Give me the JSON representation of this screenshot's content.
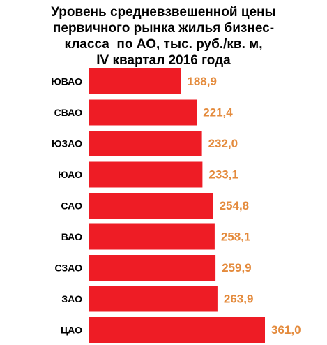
{
  "chart_data": {
    "type": "bar",
    "orientation": "horizontal",
    "title_lines": [
      "Уровень средневзвешенной цены",
      "первичного рынка жилья бизнес-",
      "класса  по АО, тыс. руб./кв. м,",
      "IV квартал 2016 года"
    ],
    "categories": [
      "ЮВАО",
      "СВАО",
      "ЮЗАО",
      "ЮАО",
      "САО",
      "ВАО",
      "СЗАО",
      "ЗАО",
      "ЦАО"
    ],
    "values": [
      188.9,
      221.4,
      232.0,
      233.1,
      254.8,
      258.1,
      259.9,
      263.9,
      361.0
    ],
    "value_labels": [
      "188,9",
      "221,4",
      "232,0",
      "233,1",
      "254,8",
      "258,1",
      "259,9",
      "263,9",
      "361,0"
    ],
    "xlim": [
      0,
      361.0
    ],
    "grid": false,
    "legend": "none",
    "bar_color": "#ee1c25",
    "label_color": "#e48b3d",
    "category_color": "#000000"
  }
}
